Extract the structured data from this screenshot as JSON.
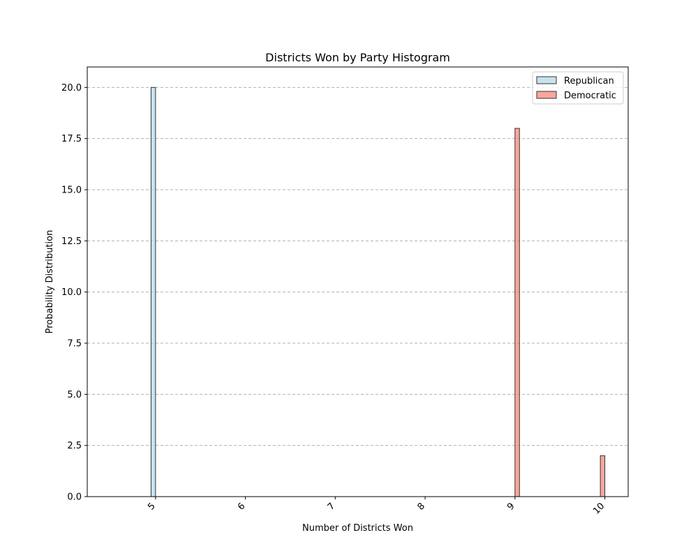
{
  "chart_data": {
    "type": "bar",
    "title": "Districts Won by Party Histogram",
    "xlabel": "Number of Districts Won",
    "ylabel": "Probability Distribution",
    "xlim": [
      4.24,
      10.26
    ],
    "ylim": [
      0,
      21
    ],
    "x_ticks": [
      5,
      6,
      7,
      8,
      9,
      10
    ],
    "x_tick_labels": [
      "5",
      "6",
      "7",
      "8",
      "9",
      "10"
    ],
    "y_ticks": [
      0,
      2.5,
      5,
      7.5,
      10,
      12.5,
      15,
      17.5,
      20
    ],
    "y_tick_labels": [
      "0.0",
      "2.5",
      "5.0",
      "7.5",
      "10.0",
      "12.5",
      "15.0",
      "17.5",
      "20.0"
    ],
    "bin_width": 0.05,
    "grid": "y-dashed",
    "legend_position": "top-right",
    "series": [
      {
        "name": "Republican",
        "color": "#add8e6",
        "edge_color": "#333333",
        "range": [
          4.5,
          5.5
        ],
        "bins": [
          {
            "x": 4.95,
            "value": 20
          }
        ]
      },
      {
        "name": "Democratic",
        "color": "#fa8072",
        "edge_color": "#333333",
        "range": [
          9.0,
          10.0
        ],
        "bins": [
          {
            "x": 9.0,
            "value": 18
          },
          {
            "x": 9.95,
            "value": 2
          }
        ]
      }
    ]
  }
}
